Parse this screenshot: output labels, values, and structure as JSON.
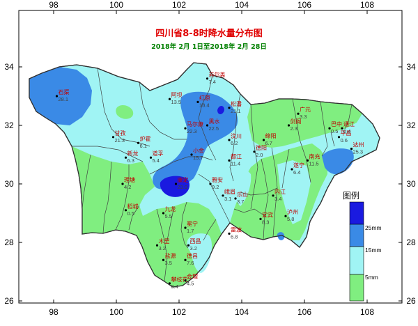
{
  "title": "四川省8-8时降水量分布图",
  "subtitle": "2018年 2月 1日至2018年 2月 28日",
  "axes": {
    "x_ticks": [
      "98",
      "100",
      "102",
      "104",
      "106",
      "108"
    ],
    "y_ticks": [
      "34",
      "32",
      "30",
      "28",
      "26"
    ]
  },
  "colors": {
    "frame_bg": "#ffffff",
    "outside": "#ffffff",
    "class_0_5": "#80ee80",
    "class_5_15": "#a0f4f4",
    "class_15_25": "#3a8ae6",
    "class_25_plus": "#1a1ae0",
    "boundary": "#404040"
  },
  "legend": {
    "title": "图例",
    "levels": [
      "25mm",
      "15mm",
      "5mm"
    ]
  },
  "stations": [
    {
      "name": "石渠",
      "value": "28.1",
      "lon": 98.1,
      "lat": 33.0
    },
    {
      "name": "若尔盖",
      "value": "7.4",
      "lon": 102.9,
      "lat": 33.6
    },
    {
      "name": "红原",
      "value": "18.4",
      "lon": 102.6,
      "lat": 32.8
    },
    {
      "name": "阿坝",
      "value": "13.5",
      "lon": 101.7,
      "lat": 32.9
    },
    {
      "name": "松潘",
      "value": "21.1",
      "lon": 103.6,
      "lat": 32.6
    },
    {
      "name": "黑水",
      "value": "22.5",
      "lon": 102.9,
      "lat": 32.0
    },
    {
      "name": "马尔康",
      "value": "22.3",
      "lon": 102.2,
      "lat": 31.9
    },
    {
      "name": "甘孜",
      "value": "21.3",
      "lon": 99.9,
      "lat": 31.6
    },
    {
      "name": "炉霍",
      "value": "6.1",
      "lon": 100.7,
      "lat": 31.4
    },
    {
      "name": "道孚",
      "value": "5.4",
      "lon": 101.1,
      "lat": 30.9
    },
    {
      "name": "新龙",
      "value": "6.3",
      "lon": 100.3,
      "lat": 30.9
    },
    {
      "name": "小金",
      "value": "15.7",
      "lon": 102.4,
      "lat": 31.0
    },
    {
      "name": "汶川",
      "value": "6.2",
      "lon": 103.6,
      "lat": 31.5
    },
    {
      "name": "都江",
      "value": "11.4",
      "lon": 103.6,
      "lat": 30.8
    },
    {
      "name": "康定",
      "value": "23.9",
      "lon": 101.9,
      "lat": 30.0
    },
    {
      "name": "雅安",
      "value": "9.2",
      "lon": 103.0,
      "lat": 30.0
    },
    {
      "name": "理塘",
      "value": "4.2",
      "lon": 100.2,
      "lat": 30.0
    },
    {
      "name": "稻城",
      "value": "0.5",
      "lon": 100.3,
      "lat": 29.1
    },
    {
      "name": "九龙",
      "value": "5.5",
      "lon": 101.5,
      "lat": 29.0
    },
    {
      "name": "峨眉",
      "value": "3.1",
      "lon": 103.4,
      "lat": 29.6
    },
    {
      "name": "冕宁",
      "value": "1.7",
      "lon": 102.2,
      "lat": 28.5
    },
    {
      "name": "木里",
      "value": "3.2",
      "lon": 101.3,
      "lat": 27.9
    },
    {
      "name": "西昌",
      "value": "3.2",
      "lon": 102.3,
      "lat": 27.9
    },
    {
      "name": "盐源",
      "value": "3.5",
      "lon": 101.5,
      "lat": 27.4
    },
    {
      "name": "德昌",
      "value": "7.6",
      "lon": 102.2,
      "lat": 27.4
    },
    {
      "name": "攀枝花",
      "value": "0.4",
      "lon": 101.7,
      "lat": 26.6
    },
    {
      "name": "会理",
      "value": "4.5",
      "lon": 102.2,
      "lat": 26.7
    },
    {
      "name": "雷波",
      "value": "6.8",
      "lon": 103.6,
      "lat": 28.3
    },
    {
      "name": "宜宾",
      "value": "8.3",
      "lon": 104.6,
      "lat": 28.8
    },
    {
      "name": "乐山",
      "value": "3.7",
      "lon": 103.8,
      "lat": 29.5
    },
    {
      "name": "广元",
      "value": "3.3",
      "lon": 105.8,
      "lat": 32.4
    },
    {
      "name": "巴中",
      "value": "0.5",
      "lon": 106.8,
      "lat": 31.9
    },
    {
      "name": "达州",
      "value": "25.3",
      "lon": 107.5,
      "lat": 31.2
    },
    {
      "name": "南充",
      "value": "11.5",
      "lon": 106.1,
      "lat": 30.8
    },
    {
      "name": "遂宁",
      "value": "6.4",
      "lon": 105.6,
      "lat": 30.5
    },
    {
      "name": "泸州",
      "value": "5.8",
      "lon": 105.4,
      "lat": 28.9
    },
    {
      "name": "内江",
      "value": "3.4",
      "lon": 105.0,
      "lat": 29.6
    },
    {
      "name": "绵阳",
      "value": "6.7",
      "lon": 104.7,
      "lat": 31.5
    },
    {
      "name": "德阳",
      "value": "2.0",
      "lon": 104.4,
      "lat": 31.1
    },
    {
      "name": "平昌",
      "value": "0.6",
      "lon": 107.1,
      "lat": 31.6
    },
    {
      "name": "通江",
      "value": "0.4",
      "lon": 107.2,
      "lat": 31.9
    },
    {
      "name": "剑阁",
      "value": "2.3",
      "lon": 105.5,
      "lat": 32.0
    }
  ]
}
